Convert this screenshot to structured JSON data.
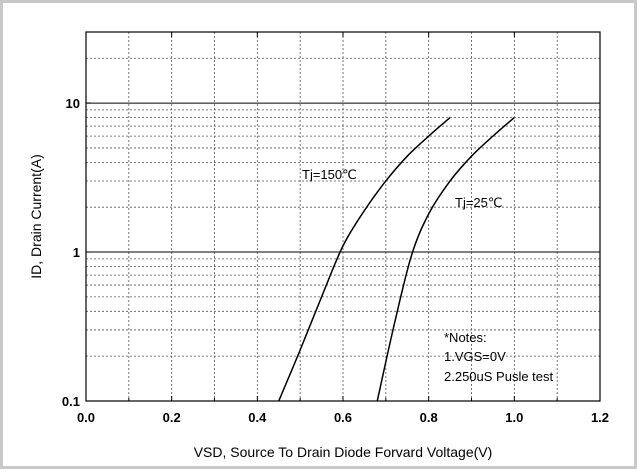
{
  "chart_data": {
    "type": "line",
    "xlabel": "VSD, Source To Drain Diode Forvard Voltage(V)",
    "ylabel": "ID,  Drain Current(A)",
    "xlim": [
      0.0,
      1.2
    ],
    "ylim": [
      0.1,
      30
    ],
    "y_scale": "log",
    "grid": true,
    "x_ticks": [
      "0.0",
      "0.2",
      "0.4",
      "0.6",
      "0.8",
      "1.0",
      "1.2"
    ],
    "y_ticks": [
      "0.1",
      "1",
      "10"
    ],
    "series": [
      {
        "name": "Tj=150℃",
        "x": [
          0.45,
          0.5,
          0.55,
          0.6,
          0.65,
          0.7,
          0.75,
          0.8,
          0.85
        ],
        "y": [
          0.1,
          0.22,
          0.5,
          1.1,
          1.9,
          3.0,
          4.4,
          6.0,
          8.0
        ]
      },
      {
        "name": "Tj=25℃",
        "x": [
          0.68,
          0.72,
          0.76,
          0.8,
          0.85,
          0.9,
          0.95,
          1.0
        ],
        "y": [
          0.1,
          0.33,
          0.95,
          1.8,
          3.0,
          4.4,
          6.0,
          8.0
        ]
      }
    ],
    "annotations": [
      "Tj=150℃",
      "Tj=25℃",
      "*Notes:",
      "1.VGS=0V",
      "2.250uS Pusle test"
    ]
  }
}
